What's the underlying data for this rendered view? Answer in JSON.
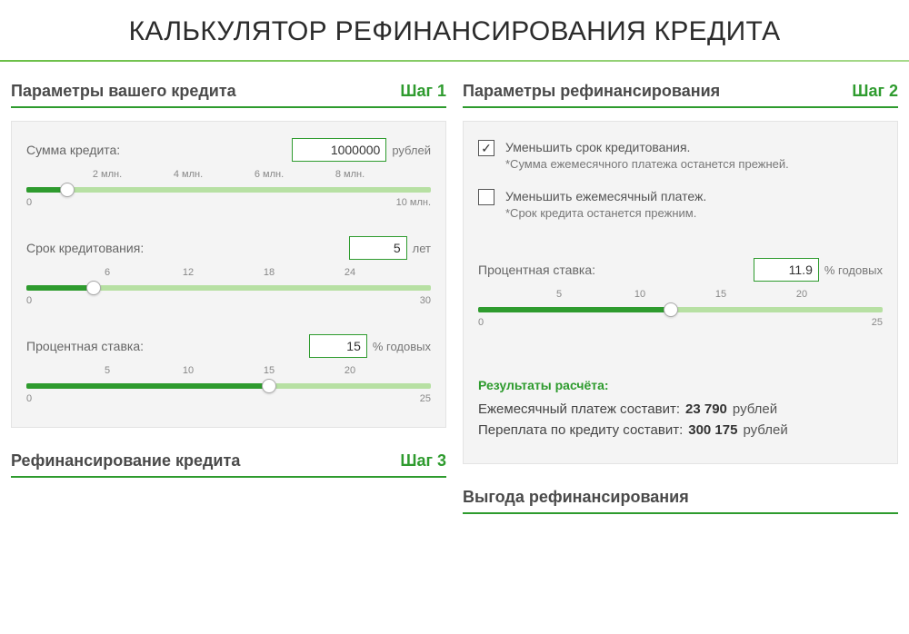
{
  "title": "КАЛЬКУЛЯТОР РЕФИНАНСИРОВАНИЯ КРЕДИТА",
  "colors": {
    "accent": "#2e9b2e",
    "track_light": "#b7e0a3",
    "panel_bg": "#f4f4f4",
    "text": "#555"
  },
  "left": {
    "header": "Параметры вашего кредита",
    "step": "Шаг 1",
    "amount": {
      "label": "Сумма кредита:",
      "value": "1000000",
      "unit": "рублей",
      "min": 0,
      "max": 10000000,
      "current": 1000000,
      "ticks": [
        {
          "pos": 20,
          "label": "2 млн."
        },
        {
          "pos": 40,
          "label": "4 млн."
        },
        {
          "pos": 60,
          "label": "6 млн."
        },
        {
          "pos": 80,
          "label": "8 млн."
        }
      ],
      "end_min": "0",
      "end_max": "10 млн.",
      "fill_pct": 10
    },
    "term": {
      "label": "Срок кредитования:",
      "value": "5",
      "unit": "лет",
      "min": 0,
      "max": 30,
      "current": 5,
      "ticks": [
        {
          "pos": 20,
          "label": "6"
        },
        {
          "pos": 40,
          "label": "12"
        },
        {
          "pos": 60,
          "label": "18"
        },
        {
          "pos": 80,
          "label": "24"
        }
      ],
      "end_min": "0",
      "end_max": "30",
      "fill_pct": 16.6
    },
    "rate": {
      "label": "Процентная ставка:",
      "value": "15",
      "unit": "% годовых",
      "min": 0,
      "max": 25,
      "current": 15,
      "ticks": [
        {
          "pos": 20,
          "label": "5"
        },
        {
          "pos": 40,
          "label": "10"
        },
        {
          "pos": 60,
          "label": "15"
        },
        {
          "pos": 80,
          "label": "20"
        }
      ],
      "end_min": "0",
      "end_max": "25",
      "fill_pct": 60
    }
  },
  "right": {
    "header": "Параметры рефинансирования",
    "step": "Шаг 2",
    "opt1": {
      "checked": true,
      "label": "Уменьшить срок кредитования.",
      "note": "*Сумма ежемесячного платежа останется прежней."
    },
    "opt2": {
      "checked": false,
      "label": "Уменьшить ежемесячный платеж.",
      "note": "*Срок кредита останется прежним."
    },
    "rate": {
      "label": "Процентная ставка:",
      "value": "11.9",
      "unit": "% годовых",
      "min": 0,
      "max": 25,
      "current": 11.9,
      "ticks": [
        {
          "pos": 20,
          "label": "5"
        },
        {
          "pos": 40,
          "label": "10"
        },
        {
          "pos": 60,
          "label": "15"
        },
        {
          "pos": 80,
          "label": "20"
        }
      ],
      "end_min": "0",
      "end_max": "25",
      "fill_pct": 47.6
    },
    "results": {
      "title": "Результаты расчёта:",
      "monthly_label": "Ежемесячный платеж составит:",
      "monthly_value": "23 790",
      "overpay_label": "Переплата по кредиту составит:",
      "overpay_value": "300 175",
      "unit": "рублей"
    }
  },
  "bottom_left": {
    "header": "Рефинансирование кредита",
    "step": "Шаг 3"
  },
  "bottom_right": {
    "header": "Выгода рефинансирования",
    "step": ""
  }
}
